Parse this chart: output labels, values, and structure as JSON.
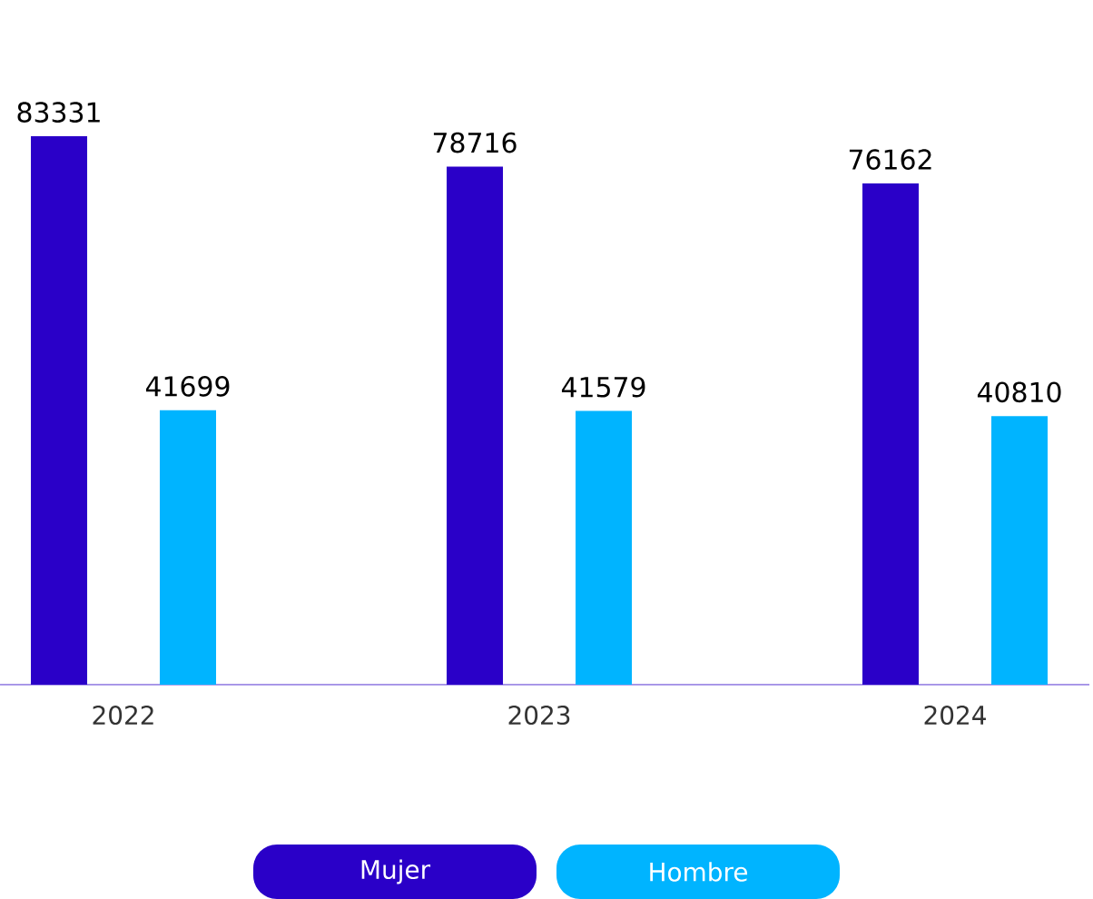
{
  "chart_data": {
    "type": "bar",
    "categories": [
      "2022",
      "2023",
      "2024"
    ],
    "series": [
      {
        "name": "Mujer",
        "color": "#2a00c8",
        "values": [
          83331,
          78716,
          76162
        ]
      },
      {
        "name": "Hombre",
        "color": "#00b4ff",
        "values": [
          41699,
          41579,
          40810
        ]
      }
    ],
    "data_labels": true,
    "legend": "bottom"
  }
}
